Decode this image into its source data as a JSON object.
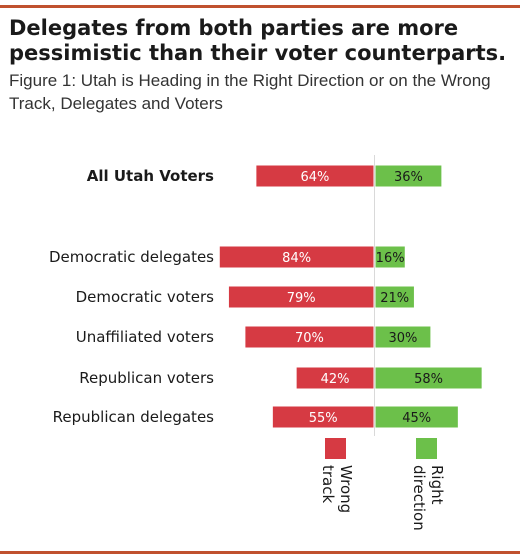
{
  "title": "Delegates from both parties are more pessimistic than their voter counterparts.",
  "subtitle": "Figure 1: Utah is Heading in the Right Direction or on the Wrong Track, Delegates and Voters",
  "colors": {
    "rule": "#c0512f",
    "wrong_track": "#d63a43",
    "right_direction": "#6cc04a",
    "wrong_label_text": "#ffffff",
    "right_label_text": "#1a1a1a",
    "axis": "#d9d9d9"
  },
  "chart_data": {
    "type": "bar",
    "orientation": "horizontal-diverging",
    "categories": [
      "All Utah Voters",
      "Democratic delegates",
      "Democratic voters",
      "Unaffiliated voters",
      "Republican voters",
      "Republican delegates"
    ],
    "emphasized_category": "All Utah Voters",
    "series": [
      {
        "name": "Wrong track",
        "values": [
          64,
          84,
          79,
          70,
          42,
          55
        ],
        "labels": [
          "64%",
          "84%",
          "79%",
          "70%",
          "42%",
          "55%"
        ],
        "direction": "left"
      },
      {
        "name": "Right direction",
        "values": [
          36,
          16,
          21,
          30,
          58,
          45
        ],
        "labels": [
          "36%",
          "16%",
          "21%",
          "30%",
          "58%",
          "45%"
        ],
        "direction": "right"
      }
    ],
    "legend": {
      "position": "bottom",
      "items": [
        {
          "series": "Wrong track",
          "line1": "Wrong",
          "line2": "track"
        },
        {
          "series": "Right direction",
          "line1": "Right",
          "line2": "direction"
        }
      ]
    },
    "units": "%"
  }
}
